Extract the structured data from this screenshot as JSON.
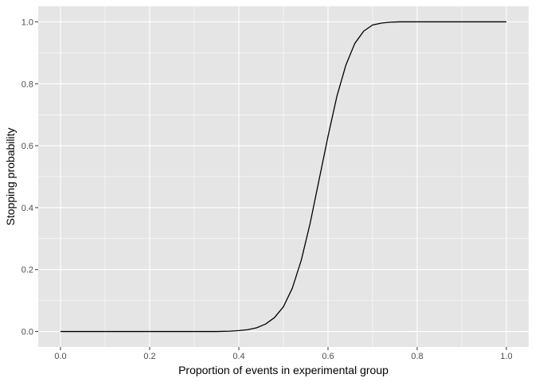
{
  "chart_data": {
    "type": "line",
    "title": "",
    "xlabel": "Proportion of events in experimental group",
    "ylabel": "Stopping probability",
    "xlim": [
      -0.05,
      1.05
    ],
    "ylim": [
      -0.05,
      1.05
    ],
    "x_ticks": [
      0.0,
      0.2,
      0.4,
      0.6,
      0.8,
      1.0
    ],
    "x_tick_labels": [
      "0.0",
      "0.2",
      "0.4",
      "0.6",
      "0.8",
      "1.0"
    ],
    "y_ticks": [
      0.0,
      0.2,
      0.4,
      0.6,
      0.8,
      1.0
    ],
    "y_tick_labels": [
      "0.0",
      "0.2",
      "0.4",
      "0.6",
      "0.8",
      "1.0"
    ],
    "x_minor_ticks": [
      0.1,
      0.3,
      0.5,
      0.7,
      0.9
    ],
    "y_minor_ticks": [
      0.1,
      0.3,
      0.5,
      0.7,
      0.9
    ],
    "grid": true,
    "legend": "none",
    "colors": {
      "panel": "#e5e5e5",
      "grid": "#ffffff",
      "line": "#000000",
      "tick_text": "#4d4d4d"
    },
    "series": [
      {
        "x": [
          0.0,
          0.05,
          0.1,
          0.15,
          0.2,
          0.25,
          0.3,
          0.35,
          0.38,
          0.4,
          0.42,
          0.44,
          0.46,
          0.48,
          0.5,
          0.52,
          0.54,
          0.56,
          0.58,
          0.6,
          0.62,
          0.64,
          0.66,
          0.68,
          0.7,
          0.72,
          0.74,
          0.76,
          0.8,
          0.85,
          0.9,
          0.95,
          1.0
        ],
        "y": [
          0.0,
          0.0,
          0.0,
          0.0,
          0.0,
          0.0,
          0.0,
          0.0,
          0.001,
          0.003,
          0.006,
          0.012,
          0.024,
          0.045,
          0.08,
          0.14,
          0.23,
          0.35,
          0.49,
          0.63,
          0.76,
          0.86,
          0.93,
          0.97,
          0.99,
          0.996,
          0.999,
          1.0,
          1.0,
          1.0,
          1.0,
          1.0,
          1.0
        ]
      }
    ]
  }
}
